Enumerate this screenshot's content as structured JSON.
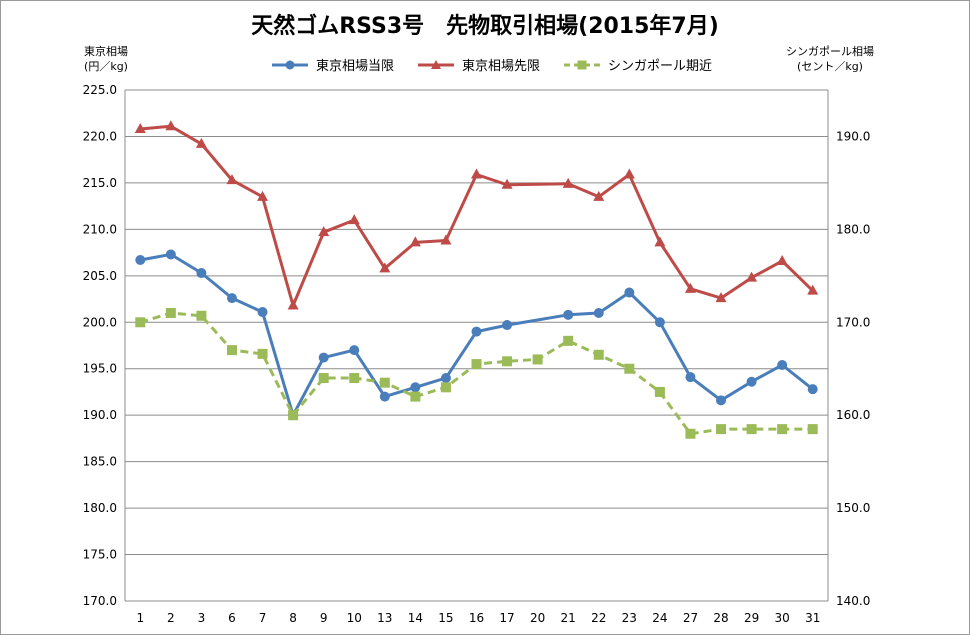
{
  "chart_data": {
    "type": "line",
    "title": "天然ゴムRSS3号　先物取引相場(2015年7月)",
    "ylabel": "東京相場\n(円／kg)",
    "y2label": "シンガポール相場\n(セント／kg)",
    "categories": [
      "1",
      "2",
      "3",
      "6",
      "7",
      "8",
      "9",
      "10",
      "13",
      "14",
      "15",
      "16",
      "17",
      "20",
      "21",
      "22",
      "23",
      "24",
      "27",
      "28",
      "29",
      "30",
      "31"
    ],
    "ylim": [
      170,
      225
    ],
    "ylim2": [
      140,
      195
    ],
    "yticks": [
      "170.0",
      "175.0",
      "180.0",
      "185.0",
      "190.0",
      "195.0",
      "200.0",
      "205.0",
      "210.0",
      "215.0",
      "220.0",
      "225.0"
    ],
    "y2ticks": [
      "140.0",
      "150.0",
      "160.0",
      "170.0",
      "180.0",
      "190.0"
    ],
    "grid": true,
    "legend_position": "top",
    "series": [
      {
        "name": "東京相場当限",
        "axis": "left",
        "color": "#4a7ebb",
        "marker": "circle",
        "dash": false,
        "values": [
          206.7,
          207.3,
          205.3,
          202.6,
          201.1,
          190.0,
          196.2,
          197.0,
          192.0,
          193.0,
          194.0,
          199.0,
          199.7,
          null,
          200.8,
          201.0,
          203.2,
          200.0,
          194.1,
          191.6,
          193.6,
          195.4,
          192.8
        ]
      },
      {
        "name": "東京相場先限",
        "axis": "left",
        "color": "#be4b48",
        "marker": "triangle",
        "dash": false,
        "values": [
          220.8,
          221.1,
          219.2,
          215.3,
          213.5,
          201.8,
          209.7,
          211.0,
          205.8,
          208.6,
          208.8,
          215.9,
          214.8,
          null,
          214.9,
          213.5,
          215.9,
          208.6,
          203.6,
          202.6,
          204.8,
          206.6,
          203.4
        ]
      },
      {
        "name": "シンガポール期近",
        "axis": "right",
        "color": "#9bbb59",
        "marker": "square",
        "dash": true,
        "values": [
          170.0,
          171.0,
          170.7,
          167.0,
          166.6,
          160.0,
          164.0,
          164.0,
          163.5,
          162.0,
          163.0,
          165.5,
          165.8,
          166.0,
          168.0,
          166.5,
          165.0,
          162.5,
          158.0,
          158.5,
          158.5,
          158.5,
          158.5
        ]
      }
    ]
  }
}
